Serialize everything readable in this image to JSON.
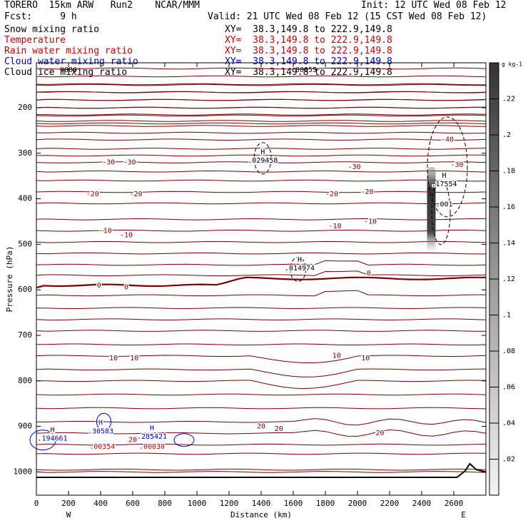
{
  "header": {
    "model": "TORERO  15km ARW   Run2    NCAR/MMM",
    "init": "Init: 12 UTC Wed 08 Feb 12",
    "fcst": "Fcst:     9 h",
    "valid": "Valid: 21 UTC Wed 08 Feb 12 (15 CST Wed 08 Feb 12)"
  },
  "fields": [
    {
      "name": "Snow mixing ratio",
      "xy": "XY=  38.3,149.8 to 222.9,149.8",
      "color": "#000000"
    },
    {
      "name": "Temperature",
      "xy": "XY=  38.3,149.8 to 222.9,149.8",
      "color": "#cc0000"
    },
    {
      "name": "Rain water mixing ratio",
      "xy": "XY=  38.3,149.8 to 222.9,149.8",
      "color": "#cc0000"
    },
    {
      "name": "Cloud water mixing ratio",
      "xy": "XY=  38.3,149.8 to 222.9,149.8",
      "color": "#0000cc"
    },
    {
      "name": "Cloud ice mixing ratio",
      "xy": "XY=  38.3,149.8 to 222.9,149.8",
      "color": "#000000"
    }
  ],
  "chart_data": {
    "type": "contour",
    "xlabel": "Distance (km)",
    "ylabel": "Pressure (hPa)",
    "xlim": [
      0,
      2800
    ],
    "ylim": [
      1050,
      100
    ],
    "x_ticks": [
      "0",
      "200",
      "400",
      "600",
      "800",
      "1000",
      "1200",
      "1400",
      "1600",
      "1800",
      "2000",
      "2200",
      "2400",
      "2600"
    ],
    "y_ticks": [
      "200",
      "300",
      "400",
      "500",
      "600",
      "700",
      "800",
      "900",
      "1000"
    ],
    "x_ends": {
      "left": "W",
      "right": "E"
    },
    "colorbar": {
      "unit": "g kg-1",
      "labels": [
        ".22",
        ".2",
        ".18",
        ".16",
        ".14",
        ".12",
        ".1",
        ".08",
        ".06",
        ".04",
        ".02"
      ],
      "values": [
        0.22,
        0.2,
        0.18,
        0.16,
        0.14,
        0.12,
        0.1,
        0.08,
        0.06,
        0.04,
        0.02
      ],
      "range": [
        0,
        0.24
      ]
    },
    "temperature_contours": [
      {
        "value": "-40",
        "labels": [
          {
            "x": 2560,
            "p": 270,
            "text": "-40"
          }
        ]
      },
      {
        "value": "-30",
        "labels": [
          {
            "x": 450,
            "p": 320,
            "text": "-30"
          },
          {
            "x": 580,
            "p": 320,
            "text": "-30"
          },
          {
            "x": 1980,
            "p": 330,
            "text": "-30"
          },
          {
            "x": 2620,
            "p": 325,
            "text": "-30"
          }
        ]
      },
      {
        "value": "-20",
        "labels": [
          {
            "x": 350,
            "p": 390,
            "text": "-20"
          },
          {
            "x": 620,
            "p": 390,
            "text": "-20"
          },
          {
            "x": 1840,
            "p": 390,
            "text": "-20"
          },
          {
            "x": 2060,
            "p": 385,
            "text": "-20"
          }
        ]
      },
      {
        "value": "-10",
        "labels": [
          {
            "x": 430,
            "p": 470,
            "text": "-10"
          },
          {
            "x": 560,
            "p": 480,
            "text": "-10"
          },
          {
            "x": 1860,
            "p": 460,
            "text": "-10"
          },
          {
            "x": 2080,
            "p": 450,
            "text": "-10"
          }
        ]
      },
      {
        "value": "0",
        "labels": [
          {
            "x": 390,
            "p": 590,
            "text": "0"
          },
          {
            "x": 560,
            "p": 594,
            "text": "0"
          },
          {
            "x": 2070,
            "p": 564,
            "text": "0"
          }
        ]
      },
      {
        "value": "10",
        "labels": [
          {
            "x": 480,
            "p": 750,
            "text": "10"
          },
          {
            "x": 610,
            "p": 750,
            "text": "10"
          },
          {
            "x": 1870,
            "p": 745,
            "text": "10"
          },
          {
            "x": 2050,
            "p": 750,
            "text": "10"
          }
        ]
      },
      {
        "value": "20",
        "labels": [
          {
            "x": 1400,
            "p": 900,
            "text": "20"
          },
          {
            "x": 1510,
            "p": 905,
            "text": "20"
          },
          {
            "x": 2140,
            "p": 915,
            "text": "20"
          },
          {
            "x": 600,
            "p": 930,
            "text": "20"
          }
        ]
      }
    ],
    "extrema": [
      {
        "x": 1410,
        "p": 311,
        "h": "H",
        "value": ".029458",
        "color": "#000000"
      },
      {
        "x": 1640,
        "p": 548,
        "h": "H",
        "value": ".014974",
        "color": "#000000"
      },
      {
        "x": 2540,
        "p": 363,
        "h": "H",
        "value": ".17554",
        "color": "#000000"
      },
      {
        "x": 2540,
        "p": 408,
        "h": "",
        "value": ".001",
        "color": "#000000"
      },
      {
        "x": 100,
        "p": 922,
        "h": "H",
        "value": ".194661",
        "color": "#0000cc"
      },
      {
        "x": 400,
        "p": 906,
        "h": "H",
        "value": ".30583",
        "color": "#0000cc"
      },
      {
        "x": 410,
        "p": 940,
        "h": "",
        "value": ".00354",
        "color": "#cc0000"
      },
      {
        "x": 720,
        "p": 918,
        "h": "H",
        "value": ".285421",
        "color": "#0000cc"
      },
      {
        "x": 720,
        "p": 940,
        "h": "",
        "value": ".00030",
        "color": "#cc0000"
      }
    ],
    "overlap_labels": [
      {
        "x": 200,
        "p": 117,
        "value": "0000",
        "color": "#000000"
      },
      {
        "x": 1680,
        "p": 117,
        "value": "00055",
        "color": "#000000"
      }
    ],
    "snow_plume": {
      "x": 2460,
      "p_top": 330,
      "p_bottom": 520,
      "max": 0.22
    }
  }
}
